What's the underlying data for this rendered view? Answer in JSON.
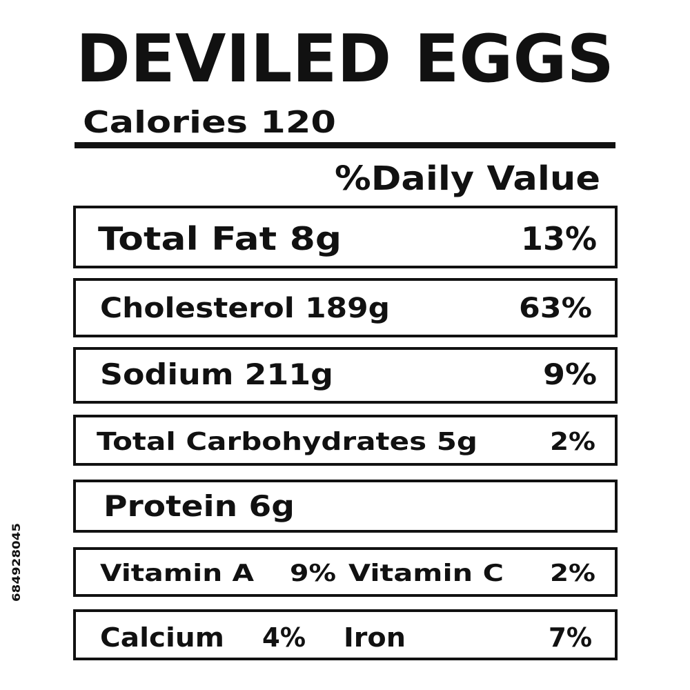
{
  "title": "DEVILED EGGS",
  "calories": "Calories 120",
  "daily_value_header": "%Daily Value",
  "rows": [
    {
      "cells": [
        "Total Fat 8g",
        "13%"
      ]
    },
    {
      "cells": [
        "Cholesterol 189g",
        "63%"
      ]
    },
    {
      "cells": [
        "Sodium 211g",
        "9%"
      ]
    },
    {
      "cells": [
        "Total Carbohydrates 5g",
        "2%"
      ]
    },
    {
      "cells": [
        "Protein 6g"
      ]
    },
    {
      "cells": [
        "Vitamin A",
        "9%",
        "Vitamin C",
        "2%"
      ]
    },
    {
      "cells": [
        "Calcium",
        "4%",
        "Iron",
        "7%"
      ]
    }
  ],
  "stock_id": "684928045"
}
